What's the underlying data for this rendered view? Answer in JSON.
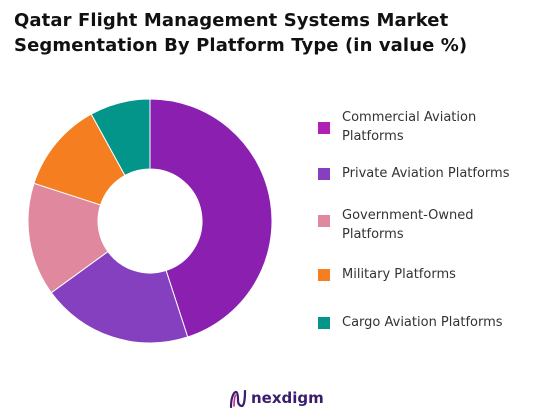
{
  "header": {
    "title_line1": "Qatar Flight Management Systems Market",
    "title_line2": "Segmentation By Platform Type (in value %)"
  },
  "chart_data": {
    "type": "pie",
    "variant": "donut",
    "title": "Qatar Flight Management Systems Market Segmentation By Platform Type (in value %)",
    "legend_position": "right",
    "start": "top, clockwise",
    "series": [
      {
        "categories": [
          "Commercial Aviation Platforms",
          "Private Aviation Platforms",
          "Government-Owned Platforms",
          "Military Platforms",
          "Cargo Aviation Platforms"
        ],
        "values": [
          45,
          20,
          15,
          12,
          8
        ],
        "colors": [
          "#8B1FB0",
          "#8540BF",
          "#E0889E",
          "#F47E20",
          "#04958A"
        ]
      }
    ]
  },
  "legend": {
    "items": [
      {
        "line1": "Commercial Aviation",
        "line2": "Platforms",
        "color": "#B01FB8"
      },
      {
        "line1": "Private Aviation Platforms",
        "line2": "",
        "color": "#8540BF"
      },
      {
        "line1": "Government-Owned",
        "line2": "Platforms",
        "color": "#E0889E"
      },
      {
        "line1": "Military Platforms",
        "line2": "",
        "color": "#F47E20"
      },
      {
        "line1": "Cargo Aviation Platforms",
        "line2": "",
        "color": "#04958A"
      }
    ]
  },
  "branding": {
    "logo_text": "nexdigm",
    "logo_icon": "nexdigm-logo-icon",
    "logo_color": "#3a1e6e"
  }
}
